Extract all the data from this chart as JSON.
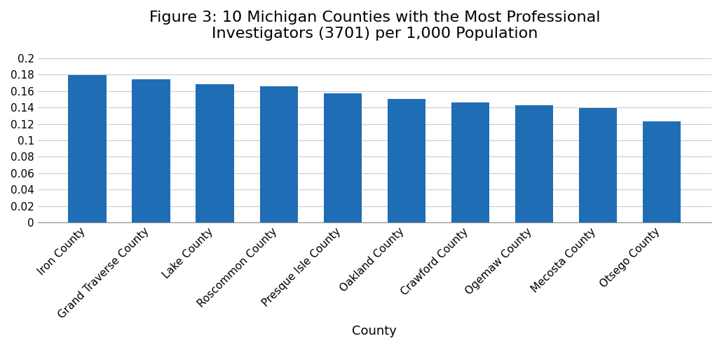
{
  "title": "Figure 3: 10 Michigan Counties with the Most Professional\nInvestigators (3701) per 1,000 Population",
  "xlabel": "County",
  "ylabel": "",
  "categories": [
    "Iron County",
    "Grand Traverse County",
    "Lake County",
    "Roscommon County",
    "Presque Isle County",
    "Oakland County",
    "Crawford County",
    "Ogemaw County",
    "Mecosta County",
    "Otsego County"
  ],
  "values": [
    0.179,
    0.174,
    0.168,
    0.166,
    0.157,
    0.15,
    0.146,
    0.143,
    0.139,
    0.123
  ],
  "bar_color": "#1f6db5",
  "ylim": [
    0,
    0.21
  ],
  "yticks": [
    0,
    0.02,
    0.04,
    0.06,
    0.08,
    0.1,
    0.12,
    0.14,
    0.16,
    0.18,
    0.2
  ],
  "title_fontsize": 16,
  "xlabel_fontsize": 13,
  "tick_fontsize": 11,
  "background_color": "#ffffff",
  "grid_color": "#cccccc"
}
